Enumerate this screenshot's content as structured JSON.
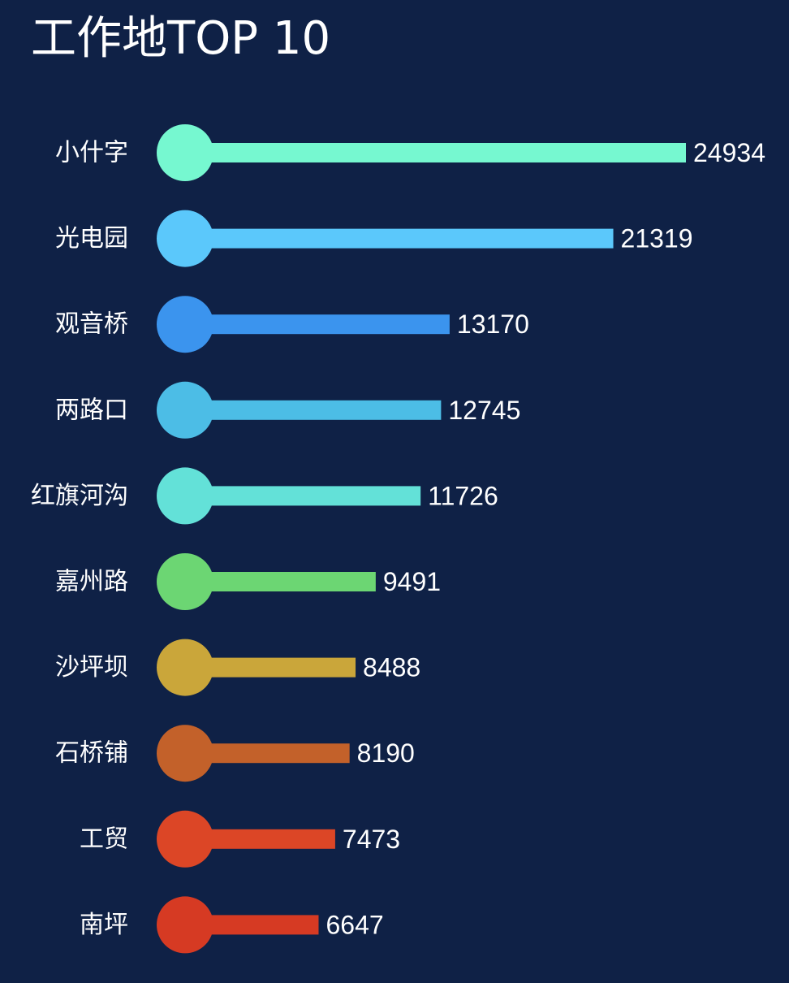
{
  "title": "工作地TOP 10",
  "chart_data": {
    "type": "bar",
    "orientation": "horizontal",
    "title": "工作地TOP 10",
    "xlabel": "",
    "ylabel": "",
    "categories": [
      "小什字",
      "光电园",
      "观音桥",
      "两路口",
      "红旗河沟",
      "嘉州路",
      "沙坪坝",
      "石桥铺",
      "工贸",
      "南坪"
    ],
    "values": [
      24934,
      21319,
      13170,
      12745,
      11726,
      9491,
      8488,
      8190,
      7473,
      6647
    ],
    "colors": [
      "#76f8d0",
      "#5bc8fb",
      "#3b94ee",
      "#4cbde6",
      "#63e1d8",
      "#6cd673",
      "#caa63a",
      "#c3612a",
      "#dc4626",
      "#d63a23"
    ],
    "grid": false,
    "legend": "none",
    "xlim": [
      0,
      24934
    ]
  }
}
